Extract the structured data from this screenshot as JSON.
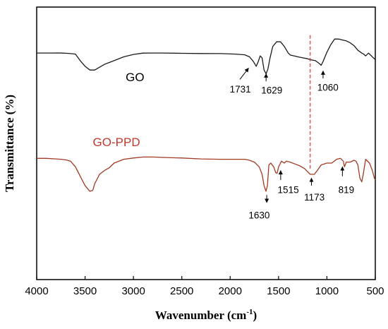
{
  "chart_data": {
    "type": "line",
    "xlabel_main": "Wavenumber (cm",
    "xlabel_sup": "-1",
    "xlabel_close": ")",
    "ylabel": "Transmittance (%)",
    "xlim": [
      4000,
      500
    ],
    "x_reversed": true,
    "xticks": [
      4000,
      3500,
      3000,
      2500,
      2000,
      1500,
      1000,
      500
    ],
    "y_ticks_shown": false,
    "grid": false,
    "series": [
      {
        "name": "GO",
        "color": "#1a1a1a",
        "label_color": "#000000",
        "points": [
          [
            4000,
            0.55
          ],
          [
            3900,
            0.55
          ],
          [
            3850,
            0.56
          ],
          [
            3780,
            0.58
          ],
          [
            3740,
            0.52
          ],
          [
            3700,
            0.44
          ],
          [
            3650,
            0.25
          ],
          [
            3600,
            0.0
          ],
          [
            3550,
            -3.5
          ],
          [
            3500,
            -6.5
          ],
          [
            3450,
            -8.5
          ],
          [
            3400,
            -8.5
          ],
          [
            3350,
            -7.0
          ],
          [
            3300,
            -5.5
          ],
          [
            3250,
            -4.5
          ],
          [
            3200,
            -3.5
          ],
          [
            3100,
            -1.5
          ],
          [
            3000,
            -0.2
          ],
          [
            2900,
            0.5
          ],
          [
            2800,
            0.55
          ],
          [
            2700,
            0.55
          ],
          [
            2500,
            0.4
          ],
          [
            2300,
            0.3
          ],
          [
            2100,
            0.25
          ],
          [
            1950,
            0.0
          ],
          [
            1850,
            -0.4
          ],
          [
            1800,
            -1.5
          ],
          [
            1760,
            -4.0
          ],
          [
            1731,
            -6.5
          ],
          [
            1710,
            -4.0
          ],
          [
            1690,
            -1.0
          ],
          [
            1670,
            -2.0
          ],
          [
            1650,
            -8.5
          ],
          [
            1629,
            -10.5
          ],
          [
            1610,
            -8.0
          ],
          [
            1590,
            -2.5
          ],
          [
            1560,
            4.0
          ],
          [
            1520,
            6.5
          ],
          [
            1480,
            6.5
          ],
          [
            1440,
            4.0
          ],
          [
            1400,
            0.5
          ],
          [
            1380,
            -0.5
          ],
          [
            1300,
            -1.5
          ],
          [
            1250,
            -2.0
          ],
          [
            1200,
            -2.5
          ],
          [
            1173,
            -3.0
          ],
          [
            1120,
            -3.5
          ],
          [
            1080,
            -5.0
          ],
          [
            1060,
            -6.0
          ],
          [
            1040,
            -4.0
          ],
          [
            1000,
            1.0
          ],
          [
            960,
            5.0
          ],
          [
            920,
            8.0
          ],
          [
            880,
            8.0
          ],
          [
            840,
            7.5
          ],
          [
            800,
            7.0
          ],
          [
            760,
            6.0
          ],
          [
            720,
            4.5
          ],
          [
            680,
            2.0
          ],
          [
            640,
            0.5
          ],
          [
            620,
            0.0
          ],
          [
            600,
            -1.0
          ],
          [
            570,
            0.5
          ],
          [
            540,
            -1.0
          ],
          [
            510,
            -2.5
          ],
          [
            500,
            -3.0
          ]
        ]
      },
      {
        "name": "GO-PPD",
        "color": "#a33a22",
        "label_color": "#c0392b",
        "points": [
          [
            4000,
            -55.5
          ],
          [
            3900,
            -55.5
          ],
          [
            3800,
            -55.8
          ],
          [
            3750,
            -56.0
          ],
          [
            3700,
            -56.3
          ],
          [
            3650,
            -57.0
          ],
          [
            3600,
            -60.0
          ],
          [
            3550,
            -65.0
          ],
          [
            3500,
            -70.0
          ],
          [
            3450,
            -73.0
          ],
          [
            3420,
            -72.5
          ],
          [
            3400,
            -69.0
          ],
          [
            3350,
            -64.0
          ],
          [
            3300,
            -62.0
          ],
          [
            3250,
            -60.5
          ],
          [
            3200,
            -58.0
          ],
          [
            3100,
            -56.0
          ],
          [
            3000,
            -55.3
          ],
          [
            2900,
            -54.8
          ],
          [
            2800,
            -54.8
          ],
          [
            2700,
            -55.0
          ],
          [
            2500,
            -55.3
          ],
          [
            2300,
            -55.8
          ],
          [
            2100,
            -56.0
          ],
          [
            1950,
            -56.0
          ],
          [
            1850,
            -56.0
          ],
          [
            1800,
            -56.5
          ],
          [
            1750,
            -57.5
          ],
          [
            1700,
            -60.0
          ],
          [
            1670,
            -64.0
          ],
          [
            1650,
            -70.0
          ],
          [
            1630,
            -73.0
          ],
          [
            1615,
            -70.0
          ],
          [
            1600,
            -59.0
          ],
          [
            1580,
            -58.0
          ],
          [
            1550,
            -60.0
          ],
          [
            1530,
            -63.0
          ],
          [
            1515,
            -63.5
          ],
          [
            1500,
            -60.0
          ],
          [
            1470,
            -57.0
          ],
          [
            1440,
            -58.0
          ],
          [
            1420,
            -57.0
          ],
          [
            1380,
            -57.5
          ],
          [
            1330,
            -58.5
          ],
          [
            1280,
            -59.5
          ],
          [
            1230,
            -61.0
          ],
          [
            1173,
            -64.0
          ],
          [
            1130,
            -64.0
          ],
          [
            1100,
            -62.0
          ],
          [
            1060,
            -59.0
          ],
          [
            1000,
            -58.0
          ],
          [
            950,
            -58.0
          ],
          [
            900,
            -56.0
          ],
          [
            860,
            -55.5
          ],
          [
            830,
            -57.0
          ],
          [
            819,
            -60.0
          ],
          [
            800,
            -57.5
          ],
          [
            760,
            -57.5
          ],
          [
            720,
            -56.5
          ],
          [
            700,
            -57.0
          ],
          [
            680,
            -59.0
          ],
          [
            660,
            -66.0
          ],
          [
            640,
            -68.0
          ],
          [
            625,
            -64.0
          ],
          [
            600,
            -56.0
          ],
          [
            560,
            -58.0
          ],
          [
            530,
            -62.0
          ],
          [
            510,
            -66.0
          ],
          [
            500,
            -67.0
          ]
        ]
      }
    ],
    "series_labels": [
      {
        "text": "GO",
        "series": 0,
        "x": 3080,
        "y": -14.5
      },
      {
        "text": "GO-PPD",
        "series": 1,
        "x": 3420,
        "y": -49.0
      }
    ],
    "reference_line": {
      "x": 1173,
      "color": "#d43a2a",
      "style": "dashed",
      "y_from": 10.0,
      "y_to": -61.0
    },
    "annotations": [
      {
        "text": "1731",
        "arrow_from": [
          1810,
          -7.5
        ],
        "arrow_to": [
          1900,
          -13.5
        ],
        "label_at": [
          1895,
          -20.5
        ],
        "series": 0
      },
      {
        "text": "1629",
        "arrow_from": [
          1629,
          -10.5
        ],
        "arrow_to": [
          1629,
          -14.5
        ],
        "label_at": [
          1570,
          -21.0
        ],
        "series": 0
      },
      {
        "text": "1060",
        "arrow_from": [
          1040,
          -9.0
        ],
        "arrow_to": [
          1040,
          -13.0
        ],
        "label_at": [
          990,
          -19.5
        ],
        "series": 0
      },
      {
        "text": "1630",
        "arrow_from": [
          1622,
          -79.0
        ],
        "arrow_to": [
          1622,
          -75.0
        ],
        "label_at": [
          1700,
          -87.5
        ],
        "series": 1
      },
      {
        "text": "1515",
        "arrow_from": [
          1478,
          -62.0
        ],
        "arrow_to": [
          1478,
          -67.0
        ],
        "label_at": [
          1400,
          -74.0
        ],
        "series": 1
      },
      {
        "text": "1173",
        "arrow_from": [
          1160,
          -66.0
        ],
        "arrow_to": [
          1160,
          -70.0
        ],
        "label_at": [
          1130,
          -78.0
        ],
        "series": 1
      },
      {
        "text": "819",
        "arrow_from": [
          840,
          -60.0
        ],
        "arrow_to": [
          840,
          -65.0
        ],
        "label_at": [
          800,
          -74.0
        ],
        "series": 1
      }
    ],
    "ylim": [
      -120,
      25
    ]
  }
}
